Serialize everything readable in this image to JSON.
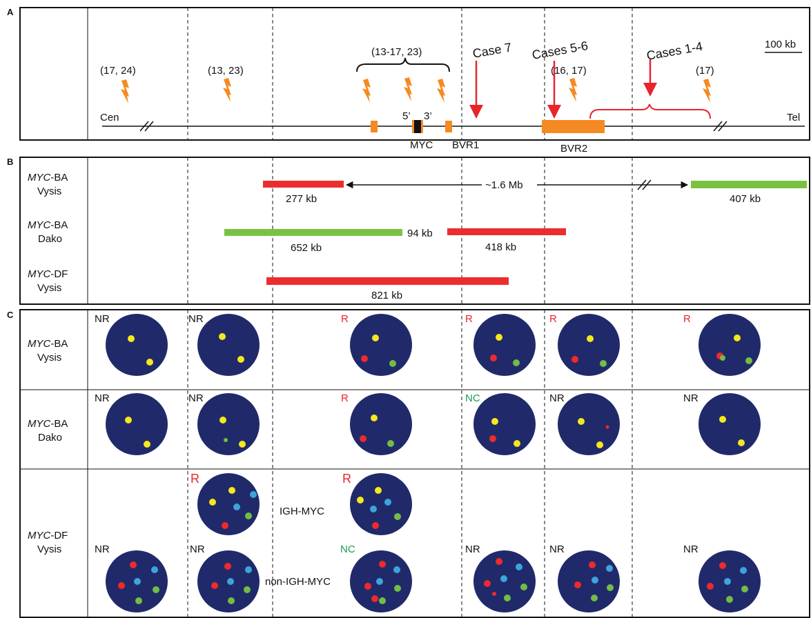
{
  "colors": {
    "orange": "#f58a22",
    "red_probe": "#ec2d2d",
    "green_probe": "#7ac143",
    "nucleus": "#202a6a",
    "signal_yellow": "#f6e81c",
    "signal_red": "#ee2a2a",
    "signal_green": "#72bd45",
    "signal_cyan": "#3da4dc",
    "call_red": "#e8242a",
    "call_green": "#1a9b50"
  },
  "panel_a": {
    "letter": "A",
    "cen": "Cen",
    "tel": "Tel",
    "scale_label": "100 kb",
    "refs": {
      "r1": "(17, 24)",
      "r2": "(13, 23)",
      "group": "(13-17, 23)",
      "r4": "(16, 17)",
      "r5": "(17)"
    },
    "cases": {
      "c7": "Case 7",
      "c56": "Cases 5-6",
      "c14": "Cases 1-4"
    },
    "prime5": "5’",
    "prime3": "3’",
    "myc": "MYC",
    "bvr1": "BVR1",
    "bvr2": "BVR2",
    "icons": [
      "lightning-icon",
      "lightning-icon",
      "lightning-icon",
      "lightning-icon",
      "lightning-icon",
      "lightning-icon",
      "lightning-icon"
    ]
  },
  "panel_b": {
    "letter": "B",
    "rows": [
      {
        "gene": "MYC",
        "suffix": "-BA",
        "vendor": "Vysis"
      },
      {
        "gene": "MYC",
        "suffix": "-BA",
        "vendor": "Dako"
      },
      {
        "gene": "MYC",
        "suffix": "-DF",
        "vendor": "Vysis"
      }
    ],
    "sizes": {
      "v277": "277 kb",
      "v407": "407 kb",
      "d652": "652 kb",
      "gap94": "94 kb",
      "d418": "418 kb",
      "df821": "821 kb"
    },
    "distance": "~1.6 Mb"
  },
  "panel_c": {
    "letter": "C",
    "rows": [
      {
        "gene": "MYC",
        "suffix": "-BA",
        "vendor": "Vysis"
      },
      {
        "gene": "MYC",
        "suffix": "-BA",
        "vendor": "Dako"
      },
      {
        "gene": "MYC",
        "suffix": "-DF",
        "vendor": "Vysis"
      }
    ],
    "calls": {
      "row1": [
        "NR",
        "NR",
        "R",
        "R",
        "R",
        "R"
      ],
      "row2": [
        "NR",
        "NR",
        "R",
        "NC",
        "NR",
        "NR"
      ],
      "row3_top": [
        "R",
        "R"
      ],
      "row3_bottom": [
        "NR",
        "NR",
        "NC",
        "NR",
        "NR",
        "NR"
      ]
    },
    "igh_myc": "IGH-MYC",
    "non_igh_myc": "non-IGH-MYC"
  }
}
